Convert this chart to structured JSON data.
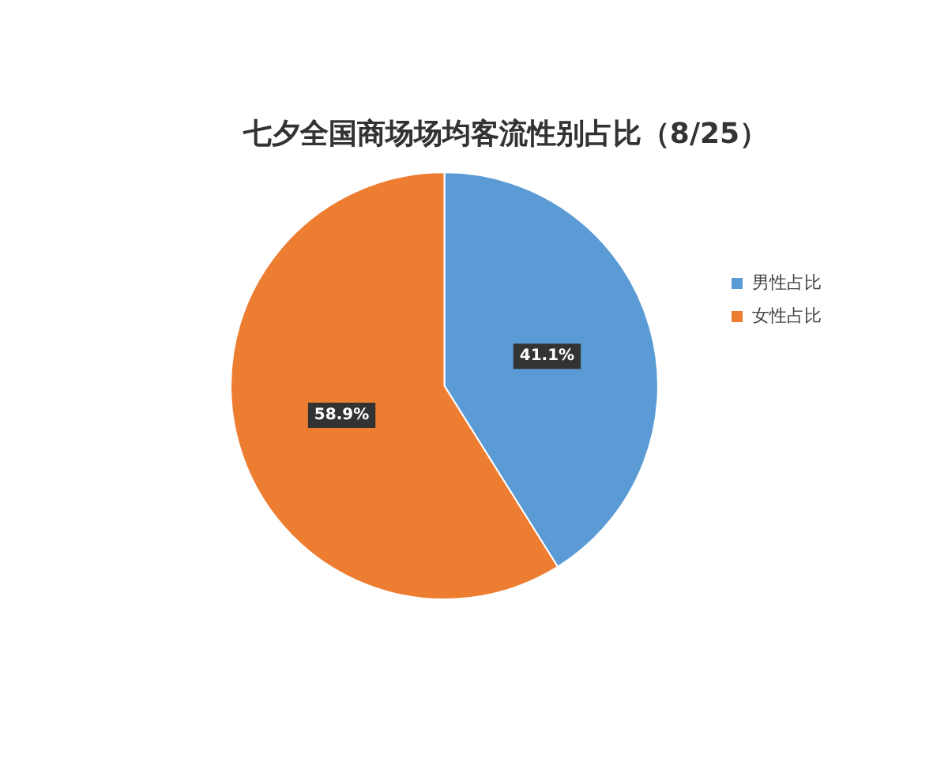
{
  "chart_data": {
    "type": "pie",
    "title": "七夕全国商场场均客流性别占比（8/25）",
    "categories": [
      "男性占比",
      "女性占比"
    ],
    "values": [
      41.1,
      58.9
    ],
    "colors": [
      "#5b9bd5",
      "#ed7d31"
    ],
    "value_labels": [
      "41.1%",
      "58.9%"
    ],
    "legend": "right"
  }
}
